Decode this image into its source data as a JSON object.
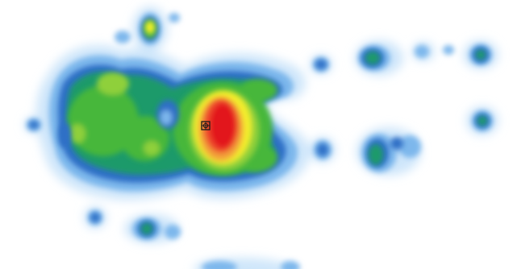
{
  "image": {
    "type": "heatmap",
    "background_color": "#ffffff",
    "color_scale": [
      "#cfe6fa",
      "#7db7ec",
      "#2f6fc6",
      "#1f9a6a",
      "#46b73b",
      "#8fd03a",
      "#f4ef2a",
      "#f2a23b",
      "#ee4a2f",
      "#e2161f"
    ],
    "marker_icon": "crosshair-icon"
  }
}
